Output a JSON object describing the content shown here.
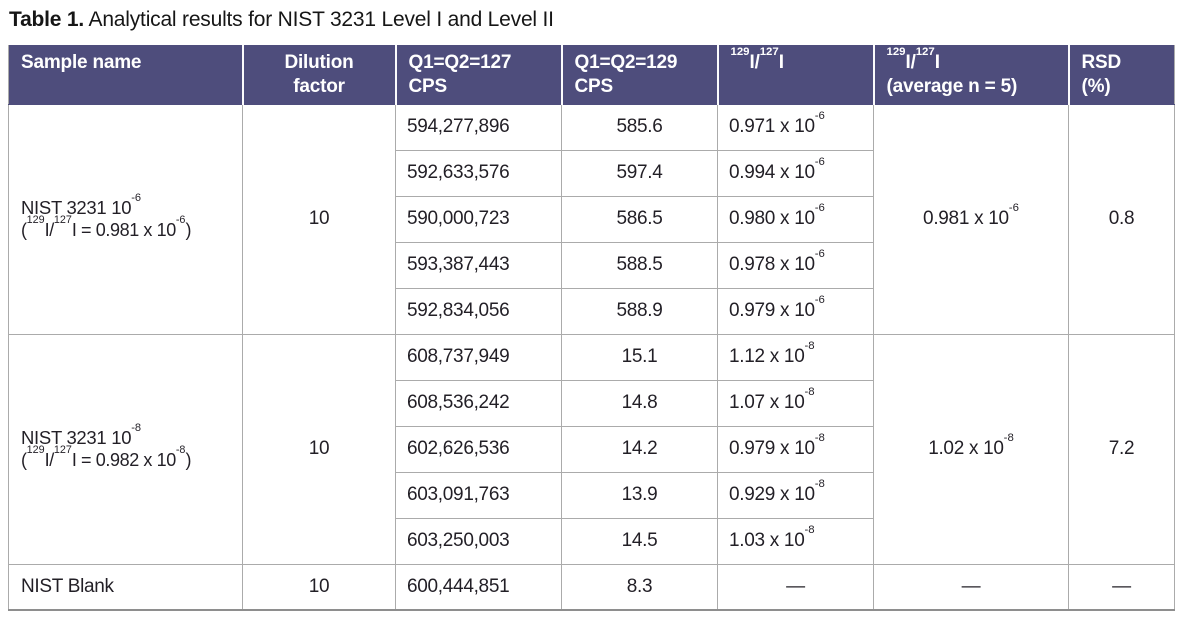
{
  "title": {
    "bold": "Table 1.",
    "rest": " Analytical results for NIST 3231 Level I and Level II"
  },
  "colors": {
    "header_bg": "#4e4d7c",
    "header_text": "#ffffff",
    "body_text": "#221f26",
    "grid_line": "#ababab",
    "bottom_border": "#8e8e8e"
  },
  "table": {
    "headers": {
      "sample": "Sample name",
      "dilution_l1": "Dilution",
      "dilution_l2": "factor",
      "q127_l1": "Q1=Q2=127",
      "q127_l2": "CPS",
      "q129_l1": "Q1=Q2=129",
      "q129_l2": "CPS",
      "ratio": [
        [
          "s",
          "129"
        ],
        [
          "t",
          "I/"
        ],
        [
          "s",
          "127"
        ],
        [
          "t",
          "I"
        ]
      ],
      "ratio_avg_l1": [
        [
          "s",
          "129"
        ],
        [
          "t",
          "I/"
        ],
        [
          "s",
          "127"
        ],
        [
          "t",
          "I"
        ]
      ],
      "ratio_avg_l2": "(average n = 5)",
      "rsd_l1": "RSD",
      "rsd_l2": "(%)"
    },
    "blocks": [
      {
        "sample_l1": [
          [
            "t",
            "NIST 3231 10"
          ],
          [
            "s",
            "-6"
          ]
        ],
        "sample_l2": [
          [
            "t",
            "("
          ],
          [
            "s",
            "129"
          ],
          [
            "t",
            "I/"
          ],
          [
            "s",
            "127"
          ],
          [
            "t",
            "I = 0.981 x 10"
          ],
          [
            "s",
            "-6"
          ],
          [
            "t",
            ")"
          ]
        ],
        "dilution": "10",
        "rows": [
          {
            "cps127": "594,277,896",
            "cps129": "585.6",
            "ratio": [
              [
                "t",
                "0.971 x 10"
              ],
              [
                "s",
                "-6"
              ]
            ]
          },
          {
            "cps127": "592,633,576",
            "cps129": "597.4",
            "ratio": [
              [
                "t",
                "0.994 x 10"
              ],
              [
                "s",
                "-6"
              ]
            ]
          },
          {
            "cps127": "590,000,723",
            "cps129": "586.5",
            "ratio": [
              [
                "t",
                "0.980 x 10"
              ],
              [
                "s",
                "-6"
              ]
            ]
          },
          {
            "cps127": "593,387,443",
            "cps129": "588.5",
            "ratio": [
              [
                "t",
                "0.978 x 10"
              ],
              [
                "s",
                "-6"
              ]
            ]
          },
          {
            "cps127": "592,834,056",
            "cps129": "588.9",
            "ratio": [
              [
                "t",
                "0.979 x 10"
              ],
              [
                "s",
                "-6"
              ]
            ]
          }
        ],
        "average": [
          [
            "t",
            "0.981 x 10"
          ],
          [
            "s",
            "-6"
          ]
        ],
        "rsd": "0.8"
      },
      {
        "sample_l1": [
          [
            "t",
            "NIST 3231 10"
          ],
          [
            "s",
            "-8"
          ]
        ],
        "sample_l2": [
          [
            "t",
            "("
          ],
          [
            "s",
            "129"
          ],
          [
            "t",
            "I/"
          ],
          [
            "s",
            "127"
          ],
          [
            "t",
            "I = 0.982 x 10"
          ],
          [
            "s",
            "-8"
          ],
          [
            "t",
            ")"
          ]
        ],
        "dilution": "10",
        "rows": [
          {
            "cps127": "608,737,949",
            "cps129": "15.1",
            "ratio": [
              [
                "t",
                "1.12 x 10"
              ],
              [
                "s",
                "-8"
              ]
            ]
          },
          {
            "cps127": "608,536,242",
            "cps129": "14.8",
            "ratio": [
              [
                "t",
                "1.07 x 10"
              ],
              [
                "s",
                "-8"
              ]
            ]
          },
          {
            "cps127": "602,626,536",
            "cps129": "14.2",
            "ratio": [
              [
                "t",
                "0.979 x 10"
              ],
              [
                "s",
                "-8"
              ]
            ]
          },
          {
            "cps127": "603,091,763",
            "cps129": "13.9",
            "ratio": [
              [
                "t",
                "0.929 x 10"
              ],
              [
                "s",
                "-8"
              ]
            ]
          },
          {
            "cps127": "603,250,003",
            "cps129": "14.5",
            "ratio": [
              [
                "t",
                "1.03 x 10"
              ],
              [
                "s",
                "-8"
              ]
            ]
          }
        ],
        "average": [
          [
            "t",
            "1.02 x 10"
          ],
          [
            "s",
            "-8"
          ]
        ],
        "rsd": "7.2"
      }
    ],
    "blank_row": {
      "sample": "NIST Blank",
      "dilution": "10",
      "cps127": "600,444,851",
      "cps129": "8.3",
      "ratio": "—",
      "average": "—",
      "rsd": "—"
    }
  }
}
